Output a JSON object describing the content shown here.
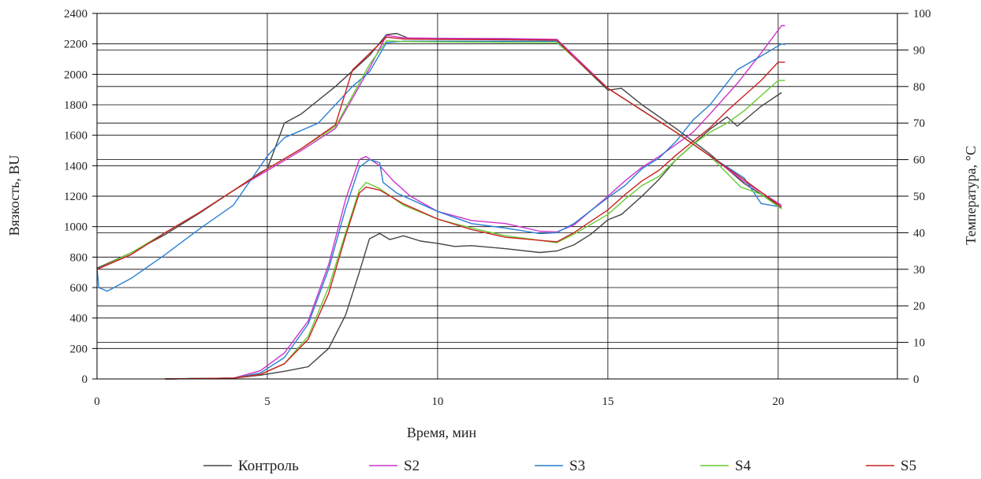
{
  "chart_data": {
    "type": "line",
    "xlabel": "Время, мин",
    "ylabel": "Вязкость, BU",
    "y2label": "Температура, °C",
    "xlim": [
      0,
      23.5
    ],
    "ylim": [
      0,
      2400
    ],
    "y2lim": [
      0,
      100
    ],
    "xticks": [
      0,
      5,
      10,
      15,
      20
    ],
    "yticks": [
      0,
      200,
      400,
      600,
      800,
      1000,
      1200,
      1400,
      1600,
      1800,
      2000,
      2200,
      2400
    ],
    "y2ticks": [
      0,
      10,
      20,
      30,
      40,
      50,
      60,
      70,
      80,
      90,
      100
    ],
    "grid": true,
    "legend_position": "bottom",
    "series": [
      {
        "name": "Контроль",
        "color": "#444444",
        "viscosity": [
          [
            2.0,
            0
          ],
          [
            4.0,
            5
          ],
          [
            4.8,
            25
          ],
          [
            5.5,
            50
          ],
          [
            6.2,
            80
          ],
          [
            6.8,
            200
          ],
          [
            7.3,
            420
          ],
          [
            7.7,
            700
          ],
          [
            8.0,
            920
          ],
          [
            8.3,
            955
          ],
          [
            8.6,
            915
          ],
          [
            9.0,
            940
          ],
          [
            9.5,
            905
          ],
          [
            10.0,
            890
          ],
          [
            10.5,
            870
          ],
          [
            11.0,
            875
          ],
          [
            12.0,
            855
          ],
          [
            13.0,
            830
          ],
          [
            13.5,
            840
          ],
          [
            14.0,
            880
          ],
          [
            14.5,
            950
          ],
          [
            15.0,
            1045
          ],
          [
            15.4,
            1080
          ],
          [
            16.0,
            1200
          ],
          [
            16.5,
            1310
          ],
          [
            17.0,
            1440
          ],
          [
            17.5,
            1540
          ],
          [
            18.0,
            1640
          ],
          [
            18.5,
            1720
          ],
          [
            18.8,
            1660
          ],
          [
            19.5,
            1790
          ],
          [
            20.1,
            1880
          ]
        ],
        "temperature": [
          [
            0,
            30.3
          ],
          [
            1.0,
            34.5
          ],
          [
            2.0,
            39.5
          ],
          [
            3.0,
            45.3
          ],
          [
            4.0,
            51.5
          ],
          [
            4.8,
            56.5
          ],
          [
            5.0,
            57.5
          ],
          [
            5.5,
            70.0
          ],
          [
            6.0,
            72.5
          ],
          [
            7.0,
            80.0
          ],
          [
            8.0,
            88.5
          ],
          [
            8.5,
            94.2
          ],
          [
            8.8,
            94.5
          ],
          [
            9.2,
            93.0
          ],
          [
            10,
            92.9
          ],
          [
            12,
            92.9
          ],
          [
            13.5,
            92.8
          ],
          [
            14.0,
            88.0
          ],
          [
            15.0,
            79.0
          ],
          [
            15.4,
            79.5
          ],
          [
            16.0,
            75.0
          ],
          [
            17.0,
            68.5
          ],
          [
            18.0,
            61.5
          ],
          [
            19.0,
            53.5
          ],
          [
            20.1,
            47.0
          ]
        ]
      },
      {
        "name": "S2",
        "color": "#cc33cc",
        "viscosity": [
          [
            2.0,
            0
          ],
          [
            4.0,
            5
          ],
          [
            4.8,
            55
          ],
          [
            5.5,
            170
          ],
          [
            6.2,
            380
          ],
          [
            6.8,
            750
          ],
          [
            7.3,
            1180
          ],
          [
            7.7,
            1440
          ],
          [
            7.9,
            1460
          ],
          [
            8.3,
            1400
          ],
          [
            8.7,
            1300
          ],
          [
            9.2,
            1200
          ],
          [
            10.0,
            1100
          ],
          [
            11.0,
            1040
          ],
          [
            12.0,
            1020
          ],
          [
            13.0,
            970
          ],
          [
            13.5,
            965
          ],
          [
            14.0,
            1010
          ],
          [
            15.0,
            1200
          ],
          [
            15.5,
            1300
          ],
          [
            16.0,
            1390
          ],
          [
            16.5,
            1460
          ],
          [
            17.0,
            1540
          ],
          [
            17.5,
            1620
          ],
          [
            18.0,
            1740
          ],
          [
            18.8,
            1940
          ],
          [
            19.5,
            2140
          ],
          [
            20.1,
            2320
          ],
          [
            20.2,
            2320
          ]
        ],
        "temperature": [
          [
            0,
            30.0
          ],
          [
            1.0,
            34.0
          ],
          [
            2.0,
            40.0
          ],
          [
            3.0,
            45.5
          ],
          [
            4.0,
            51.5
          ],
          [
            5.0,
            57.0
          ],
          [
            6.0,
            62.5
          ],
          [
            7.0,
            68.5
          ],
          [
            8.0,
            85.0
          ],
          [
            8.5,
            94.0
          ],
          [
            9.0,
            93.3
          ],
          [
            10,
            93.2
          ],
          [
            12,
            93.1
          ],
          [
            13.5,
            92.9
          ],
          [
            14.0,
            88.5
          ],
          [
            15.0,
            79.5
          ],
          [
            16.0,
            73.5
          ],
          [
            17.0,
            67.5
          ],
          [
            18.0,
            61.0
          ],
          [
            19.0,
            54.0
          ],
          [
            20.1,
            47.5
          ]
        ]
      },
      {
        "name": "S3",
        "color": "#2a7fd4",
        "viscosity": [
          [
            2.0,
            0
          ],
          [
            4.0,
            5
          ],
          [
            4.8,
            40
          ],
          [
            5.5,
            140
          ],
          [
            6.2,
            360
          ],
          [
            6.8,
            720
          ],
          [
            7.3,
            1120
          ],
          [
            7.7,
            1390
          ],
          [
            8.0,
            1440
          ],
          [
            8.3,
            1420
          ],
          [
            8.4,
            1290
          ],
          [
            8.8,
            1220
          ],
          [
            9.5,
            1150
          ],
          [
            10.0,
            1100
          ],
          [
            11.0,
            1020
          ],
          [
            12.0,
            990
          ],
          [
            13.0,
            955
          ],
          [
            13.5,
            960
          ],
          [
            14.0,
            1020
          ],
          [
            15.0,
            1190
          ],
          [
            15.5,
            1270
          ],
          [
            16.0,
            1380
          ],
          [
            16.5,
            1450
          ],
          [
            17.0,
            1560
          ],
          [
            17.5,
            1700
          ],
          [
            18.0,
            1800
          ],
          [
            18.8,
            2030
          ],
          [
            19.5,
            2120
          ],
          [
            20.1,
            2200
          ],
          [
            20.2,
            2195
          ]
        ],
        "temperature": [
          [
            0,
            30.5
          ],
          [
            0.05,
            25.0
          ],
          [
            0.3,
            24.0
          ],
          [
            1.0,
            27.5
          ],
          [
            2.0,
            34.0
          ],
          [
            3.0,
            41.0
          ],
          [
            4.0,
            47.5
          ],
          [
            5.0,
            61.0
          ],
          [
            5.5,
            66.0
          ],
          [
            6.5,
            70.0
          ],
          [
            7.5,
            80.0
          ],
          [
            8.0,
            84.0
          ],
          [
            8.5,
            92.0
          ],
          [
            9,
            92.4
          ],
          [
            12,
            92.4
          ],
          [
            13.5,
            92.4
          ],
          [
            14.0,
            88.0
          ],
          [
            15.0,
            79.5
          ],
          [
            16.0,
            73.5
          ],
          [
            17.0,
            67.5
          ],
          [
            18.0,
            61.0
          ],
          [
            19.0,
            55.0
          ],
          [
            19.5,
            48.0
          ],
          [
            20.1,
            47.0
          ]
        ]
      },
      {
        "name": "S4",
        "color": "#66cc33",
        "viscosity": [
          [
            2.0,
            0
          ],
          [
            4.0,
            5
          ],
          [
            4.8,
            30
          ],
          [
            5.5,
            100
          ],
          [
            6.2,
            280
          ],
          [
            6.8,
            600
          ],
          [
            7.3,
            960
          ],
          [
            7.7,
            1240
          ],
          [
            7.9,
            1290
          ],
          [
            8.3,
            1250
          ],
          [
            9.0,
            1140
          ],
          [
            10.0,
            1050
          ],
          [
            11.0,
            990
          ],
          [
            12.0,
            940
          ],
          [
            13.0,
            910
          ],
          [
            13.5,
            895
          ],
          [
            14.0,
            950
          ],
          [
            15.0,
            1080
          ],
          [
            15.5,
            1180
          ],
          [
            16.0,
            1270
          ],
          [
            16.5,
            1330
          ],
          [
            17.0,
            1440
          ],
          [
            17.5,
            1540
          ],
          [
            18.0,
            1620
          ],
          [
            18.5,
            1680
          ],
          [
            19.0,
            1760
          ],
          [
            19.5,
            1860
          ],
          [
            20.0,
            1960
          ],
          [
            20.2,
            1960
          ]
        ],
        "temperature": [
          [
            0,
            30.0
          ],
          [
            1.0,
            34.5
          ],
          [
            2.0,
            40.0
          ],
          [
            3.0,
            45.5
          ],
          [
            4.0,
            51.5
          ],
          [
            5.0,
            57.5
          ],
          [
            6.0,
            63.0
          ],
          [
            7.0,
            69.0
          ],
          [
            8.0,
            86.0
          ],
          [
            8.5,
            92.5
          ],
          [
            9,
            92.3
          ],
          [
            10,
            92.2
          ],
          [
            12,
            92.1
          ],
          [
            13.5,
            92.0
          ],
          [
            14.0,
            88.0
          ],
          [
            15.0,
            79.5
          ],
          [
            16.0,
            73.5
          ],
          [
            17.0,
            67.5
          ],
          [
            18.0,
            61.0
          ],
          [
            18.9,
            52.5
          ],
          [
            19.5,
            50.5
          ],
          [
            20.1,
            46.5
          ]
        ]
      },
      {
        "name": "S5",
        "color": "#cc2222",
        "viscosity": [
          [
            2.0,
            0
          ],
          [
            4.0,
            5
          ],
          [
            4.8,
            30
          ],
          [
            5.5,
            100
          ],
          [
            6.2,
            260
          ],
          [
            6.8,
            560
          ],
          [
            7.3,
            940
          ],
          [
            7.7,
            1220
          ],
          [
            7.9,
            1260
          ],
          [
            8.3,
            1240
          ],
          [
            9.0,
            1150
          ],
          [
            10.0,
            1050
          ],
          [
            11.0,
            980
          ],
          [
            12.0,
            930
          ],
          [
            13.0,
            910
          ],
          [
            13.5,
            900
          ],
          [
            14.0,
            960
          ],
          [
            15.0,
            1110
          ],
          [
            15.5,
            1210
          ],
          [
            16.0,
            1300
          ],
          [
            16.5,
            1370
          ],
          [
            17.0,
            1470
          ],
          [
            17.5,
            1560
          ],
          [
            18.0,
            1650
          ],
          [
            18.5,
            1760
          ],
          [
            19.0,
            1860
          ],
          [
            19.5,
            1960
          ],
          [
            20.0,
            2080
          ],
          [
            20.2,
            2080
          ]
        ],
        "temperature": [
          [
            0,
            30.0
          ],
          [
            1.0,
            34.0
          ],
          [
            1.5,
            37.0
          ],
          [
            2.0,
            40.0
          ],
          [
            3.0,
            45.5
          ],
          [
            4.0,
            51.5
          ],
          [
            5.0,
            57.5
          ],
          [
            6.0,
            63.0
          ],
          [
            7.0,
            69.5
          ],
          [
            7.5,
            84.5
          ],
          [
            8.0,
            89.0
          ],
          [
            8.5,
            93.5
          ],
          [
            9,
            93.0
          ],
          [
            10,
            92.9
          ],
          [
            12,
            92.8
          ],
          [
            13.5,
            92.7
          ],
          [
            14.0,
            88.0
          ],
          [
            15.0,
            79.5
          ],
          [
            16.0,
            73.5
          ],
          [
            17.0,
            67.5
          ],
          [
            18.0,
            61.0
          ],
          [
            19.0,
            54.5
          ],
          [
            20.1,
            47.0
          ]
        ]
      }
    ]
  }
}
